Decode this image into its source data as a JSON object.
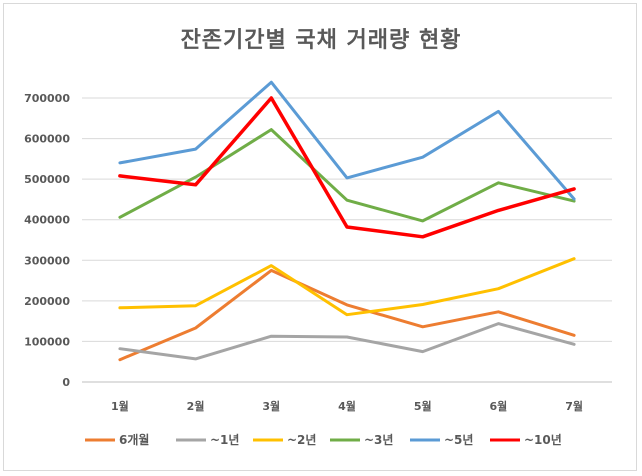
{
  "chart_data": {
    "type": "line",
    "title": "잔존기간별 국채 거래량 현황",
    "categories": [
      "1월",
      "2월",
      "3월",
      "4월",
      "5월",
      "6월",
      "7월"
    ],
    "ylim": [
      0,
      700000
    ],
    "yticks": [
      0,
      100000,
      200000,
      300000,
      400000,
      500000,
      600000,
      700000
    ],
    "ytick_labels": [
      "0",
      "100000",
      "200000",
      "300000",
      "400000",
      "500000",
      "600000",
      "700000"
    ],
    "grid": "horizontal",
    "legend": "bottom",
    "series": [
      {
        "name": "6개월",
        "color": "#ed7d31",
        "values": [
          55000,
          133000,
          275000,
          190000,
          136000,
          173000,
          115000
        ]
      },
      {
        "name": "~1년",
        "color": "#a5a5a5",
        "values": [
          82000,
          57000,
          113000,
          111000,
          75000,
          144000,
          93000
        ]
      },
      {
        "name": "~2년",
        "color": "#ffc000",
        "values": [
          183000,
          188000,
          287000,
          166000,
          191000,
          230000,
          304000
        ]
      },
      {
        "name": "~3년",
        "color": "#70ad47",
        "values": [
          406000,
          505000,
          622000,
          448000,
          397000,
          491000,
          446000
        ]
      },
      {
        "name": "~5년",
        "color": "#5b9bd5",
        "values": [
          540000,
          574000,
          739000,
          503000,
          554000,
          667000,
          451000
        ]
      },
      {
        "name": "~10년",
        "color": "#ff0000",
        "values": [
          508000,
          486000,
          700000,
          382000,
          358000,
          423000,
          476000
        ]
      }
    ]
  }
}
